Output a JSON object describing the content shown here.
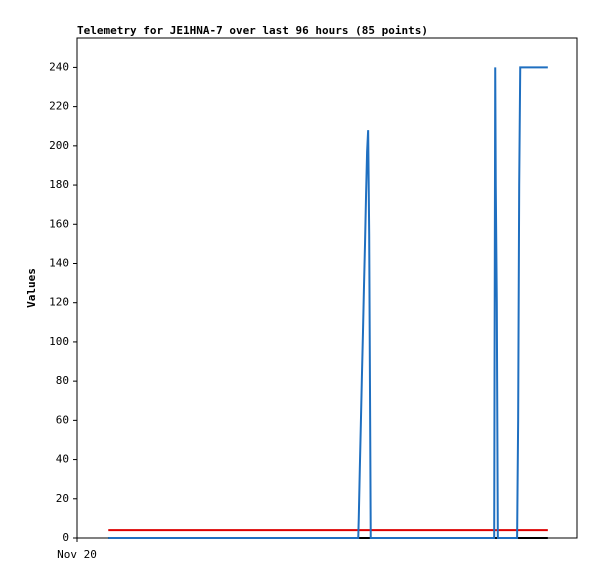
{
  "chart_data": {
    "type": "line",
    "title": "Telemetry for JE1HNA-7 over last 96 hours (85 points)",
    "y_label": "Values",
    "xlim": [
      0,
      96
    ],
    "xticks": [
      {
        "value": 0,
        "label": "Nov 20"
      }
    ],
    "ylim": [
      0,
      255
    ],
    "yticks": [
      0,
      20,
      40,
      60,
      80,
      100,
      120,
      140,
      160,
      180,
      200,
      220,
      240
    ],
    "grid": false,
    "series": [
      {
        "color": "#000000",
        "x": [
          6.0,
          90.4
        ],
        "values": [
          0,
          0
        ]
      },
      {
        "color": "#dd0000",
        "x": [
          6.0,
          90.4
        ],
        "values": [
          4,
          4
        ]
      },
      {
        "color": "#1f6fc0",
        "x": [
          6.0,
          54.0,
          54.1,
          54.3,
          54.5,
          54.7,
          54.9,
          55.1,
          55.3,
          55.5,
          55.7,
          55.9,
          56.1,
          56.3,
          56.4,
          80.1,
          80.3,
          80.4,
          80.6,
          80.8,
          84.5,
          84.7,
          84.9,
          85.1,
          90.4
        ],
        "values": [
          0,
          0,
          10,
          35,
          58,
          82,
          104,
          128,
          150,
          175,
          197,
          208,
          155,
          52,
          0,
          0,
          240,
          180,
          120,
          0,
          0,
          60,
          180,
          240,
          240
        ]
      }
    ]
  }
}
